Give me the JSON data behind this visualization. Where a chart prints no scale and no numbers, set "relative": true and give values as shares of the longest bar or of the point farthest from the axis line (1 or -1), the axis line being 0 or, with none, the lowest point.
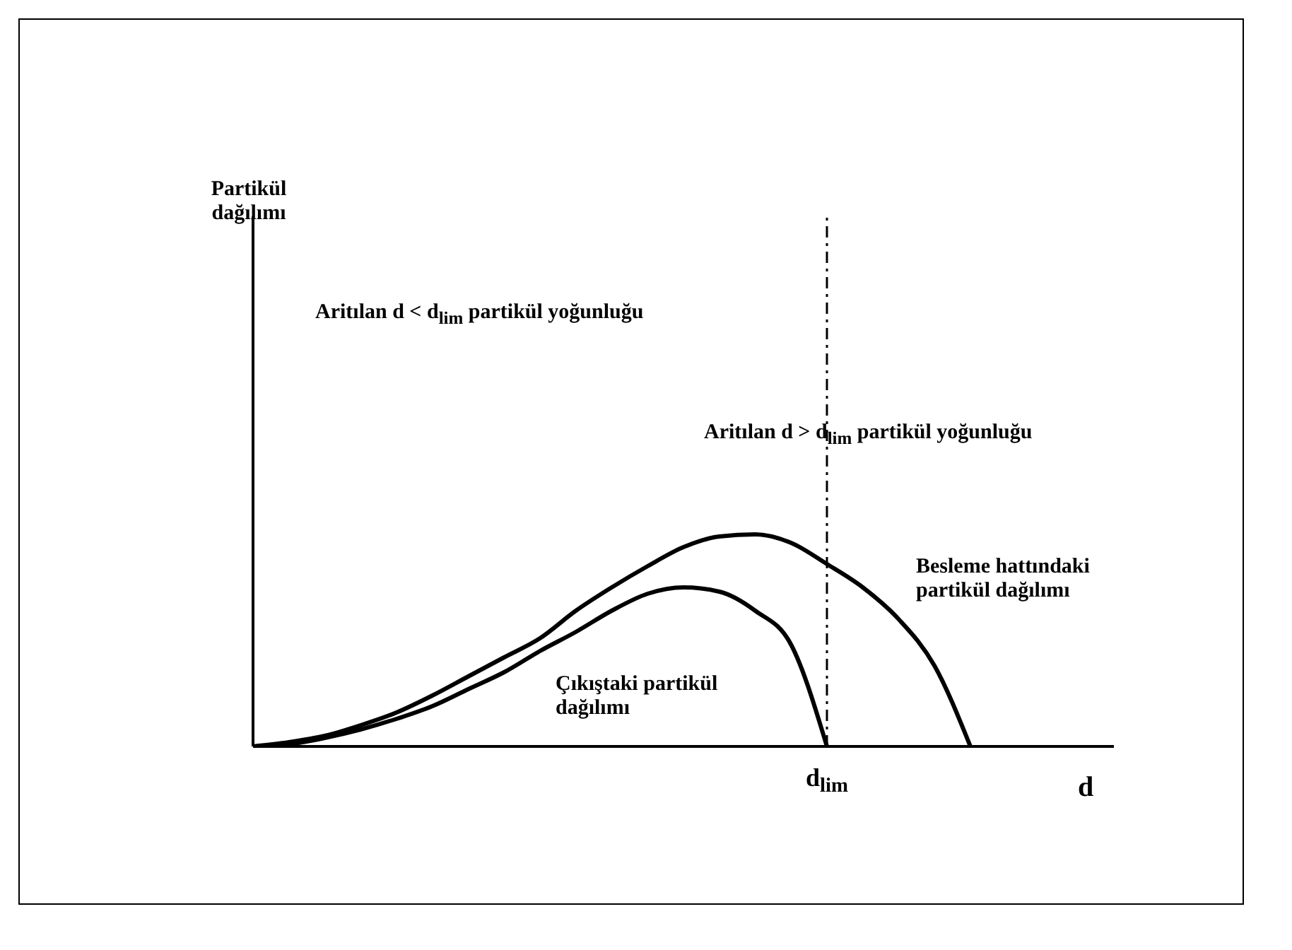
{
  "chart_data": {
    "type": "line",
    "relative": true,
    "xlabel": "d",
    "marker": "none",
    "categories": [
      null,
      null,
      null,
      null,
      null,
      null,
      null,
      null,
      null,
      null,
      null,
      null,
      null,
      null,
      null,
      null,
      null,
      null,
      null,
      null,
      null
    ],
    "series": [
      {
        "name": "Besleme hattındaki partikül dağılımı",
        "color": "#000000",
        "values": [
          0,
          0.02,
          0.05,
          0.1,
          0.16,
          0.24,
          0.33,
          0.42,
          0.51,
          0.64,
          0.75,
          0.85,
          0.94,
          0.99,
          1.0,
          0.96,
          0.86,
          0.75,
          0.6,
          0.38,
          0
        ]
      },
      {
        "name": "Çıkıştaki partikül dağılımı",
        "color": "#000000",
        "values": [
          0,
          0.01,
          0.04,
          0.08,
          0.13,
          0.19,
          0.27,
          0.35,
          0.45,
          0.54,
          0.64,
          0.72,
          0.75,
          0.73,
          0.64,
          0.48,
          0,
          null,
          null,
          null,
          null
        ]
      }
    ],
    "line_style": "solid",
    "annotations": [
      "Aritılan d < d$_{lim}$ partikül yoğunluğu",
      "Aritılan d > d$_{lim}$ partikül yoğunluğu",
      "d$_{lim}$",
      "Partikül dağılımı"
    ]
  }
}
